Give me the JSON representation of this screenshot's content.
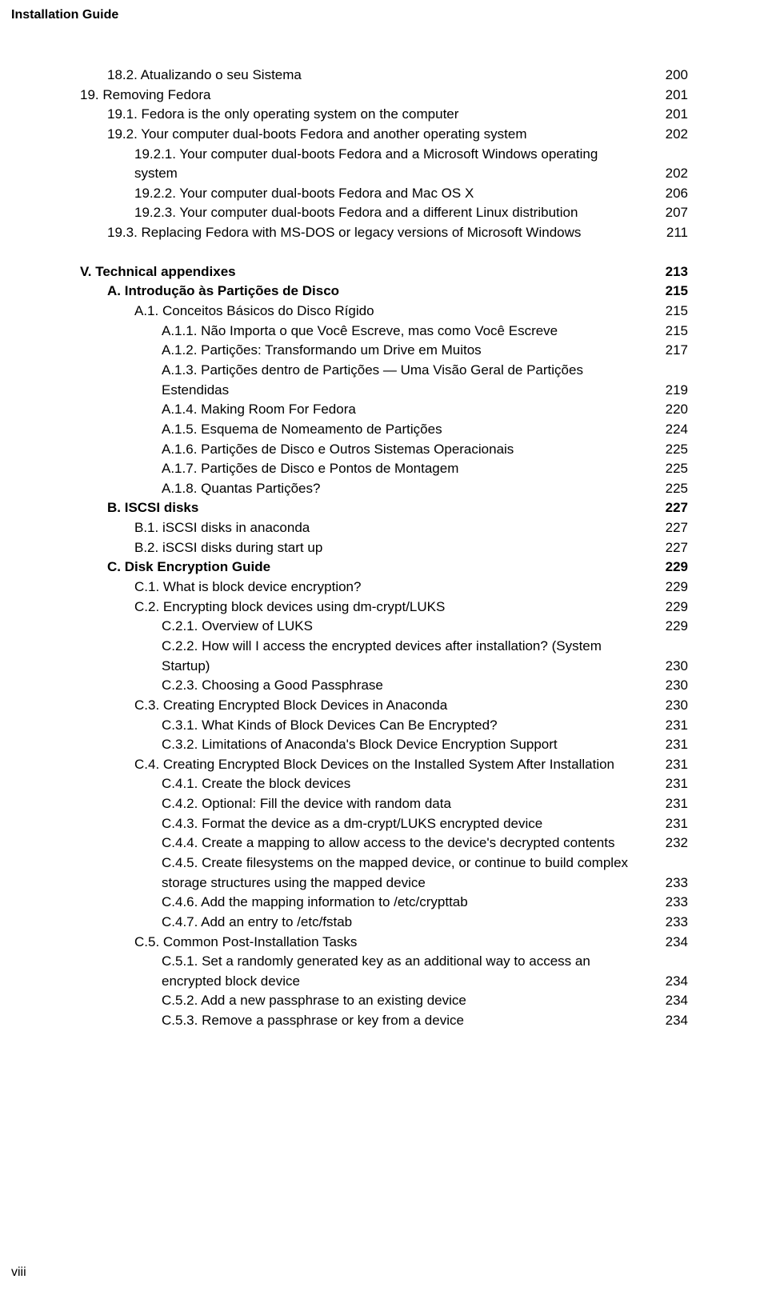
{
  "running_header": "Installation Guide",
  "page_number_label": "viii",
  "toc": [
    {
      "indent": 1,
      "bold": false,
      "dots": true,
      "label": "18.2. Atualizando o seu Sistema",
      "page": "200"
    },
    {
      "indent": 0,
      "bold": false,
      "dots": false,
      "label": "19. Removing Fedora",
      "page": "201"
    },
    {
      "indent": 1,
      "bold": false,
      "dots": true,
      "label": "19.1. Fedora is the only operating system on the computer",
      "page": "201"
    },
    {
      "indent": 1,
      "bold": false,
      "dots": true,
      "label": "19.2. Your computer dual-boots Fedora and another operating system",
      "page": "202"
    },
    {
      "indent": 2,
      "bold": false,
      "dots": false,
      "label": "19.2.1. Your computer dual-boots Fedora and a Microsoft Windows operating",
      "page": "",
      "nopage": true
    },
    {
      "indent": 2,
      "bold": false,
      "dots": true,
      "label": "system",
      "page": "202"
    },
    {
      "indent": 2,
      "bold": false,
      "dots": true,
      "label": "19.2.2. Your computer dual-boots Fedora and Mac OS X",
      "page": "206"
    },
    {
      "indent": 2,
      "bold": false,
      "dots": true,
      "label": "19.2.3. Your computer dual-boots Fedora and a different Linux distribution",
      "page": "207"
    },
    {
      "indent": 1,
      "bold": false,
      "dots": true,
      "label": "19.3. Replacing Fedora with MS-DOS or legacy versions of Microsoft Windows",
      "page": "211"
    },
    {
      "gap": true
    },
    {
      "indent": 0,
      "bold": true,
      "dots": false,
      "label": "V. Technical appendixes",
      "page": "213"
    },
    {
      "indent": 1,
      "bold": true,
      "dots": false,
      "label": "A. Introdução às Partições de Disco",
      "page": "215"
    },
    {
      "indent": 2,
      "bold": false,
      "dots": true,
      "label": "A.1. Conceitos Básicos do Disco Rígido",
      "page": "215"
    },
    {
      "indent": 2,
      "bold": false,
      "dots": true,
      "prefix_indent": 34,
      "label": "A.1.1. Não Importa o que Você Escreve, mas como Você Escreve",
      "page": "215"
    },
    {
      "indent": 2,
      "bold": false,
      "dots": true,
      "prefix_indent": 34,
      "label": "A.1.2. Partições: Transformando um Drive em Muitos",
      "page": "217"
    },
    {
      "indent": 2,
      "bold": false,
      "dots": false,
      "prefix_indent": 34,
      "label": "A.1.3. Partições dentro de Partições — Uma Visão Geral de Partições",
      "page": "",
      "nopage": true
    },
    {
      "indent": 2,
      "bold": false,
      "dots": true,
      "prefix_indent": 34,
      "label": "Estendidas",
      "page": "219"
    },
    {
      "indent": 2,
      "bold": false,
      "dots": true,
      "prefix_indent": 34,
      "label": "A.1.4. Making Room For Fedora",
      "page": "220"
    },
    {
      "indent": 2,
      "bold": false,
      "dots": true,
      "prefix_indent": 34,
      "label": "A.1.5. Esquema de Nomeamento de Partições",
      "page": "224"
    },
    {
      "indent": 2,
      "bold": false,
      "dots": true,
      "prefix_indent": 34,
      "label": "A.1.6. Partições de Disco e Outros Sistemas Operacionais",
      "page": "225"
    },
    {
      "indent": 2,
      "bold": false,
      "dots": true,
      "prefix_indent": 34,
      "label": "A.1.7. Partições de Disco e Pontos de Montagem",
      "page": "225"
    },
    {
      "indent": 2,
      "bold": false,
      "dots": true,
      "prefix_indent": 34,
      "label": "A.1.8. Quantas Partições?",
      "page": "225"
    },
    {
      "indent": 1,
      "bold": true,
      "dots": false,
      "label": "B. ISCSI disks",
      "page": "227"
    },
    {
      "indent": 2,
      "bold": false,
      "dots": true,
      "label": "B.1. iSCSI disks in anaconda",
      "page": "227"
    },
    {
      "indent": 2,
      "bold": false,
      "dots": true,
      "label": "B.2. iSCSI disks during start up",
      "page": "227"
    },
    {
      "indent": 1,
      "bold": true,
      "dots": false,
      "label": "C. Disk Encryption Guide",
      "page": "229"
    },
    {
      "indent": 2,
      "bold": false,
      "dots": true,
      "label": "C.1. What is block device encryption?",
      "page": "229"
    },
    {
      "indent": 2,
      "bold": false,
      "dots": true,
      "label": "C.2. Encrypting block devices using dm-crypt/LUKS",
      "page": "229"
    },
    {
      "indent": 2,
      "bold": false,
      "dots": true,
      "prefix_indent": 34,
      "label": "C.2.1. Overview of LUKS",
      "page": "229"
    },
    {
      "indent": 2,
      "bold": false,
      "dots": false,
      "prefix_indent": 34,
      "label": "C.2.2. How will I access the encrypted devices after installation? (System",
      "page": "",
      "nopage": true
    },
    {
      "indent": 2,
      "bold": false,
      "dots": true,
      "prefix_indent": 34,
      "label": "Startup)",
      "page": "230"
    },
    {
      "indent": 2,
      "bold": false,
      "dots": true,
      "prefix_indent": 34,
      "label": "C.2.3. Choosing a Good Passphrase",
      "page": "230"
    },
    {
      "indent": 2,
      "bold": false,
      "dots": true,
      "label": "C.3. Creating Encrypted Block Devices in Anaconda",
      "page": "230"
    },
    {
      "indent": 2,
      "bold": false,
      "dots": true,
      "prefix_indent": 34,
      "label": "C.3.1. What Kinds of Block Devices Can Be Encrypted?",
      "page": "231"
    },
    {
      "indent": 2,
      "bold": false,
      "dots": true,
      "prefix_indent": 34,
      "label": "C.3.2. Limitations of Anaconda's Block Device Encryption Support",
      "page": "231"
    },
    {
      "indent": 2,
      "bold": false,
      "dots": true,
      "label": "C.4. Creating Encrypted Block Devices on the Installed System After Installation",
      "page": "231"
    },
    {
      "indent": 2,
      "bold": false,
      "dots": true,
      "prefix_indent": 34,
      "label": "C.4.1. Create the block devices",
      "page": "231"
    },
    {
      "indent": 2,
      "bold": false,
      "dots": true,
      "prefix_indent": 34,
      "label": "C.4.2. Optional: Fill the device with random data",
      "page": "231"
    },
    {
      "indent": 2,
      "bold": false,
      "dots": true,
      "prefix_indent": 34,
      "label": "C.4.3. Format the device as a dm-crypt/LUKS encrypted device",
      "page": "231"
    },
    {
      "indent": 2,
      "bold": false,
      "dots": true,
      "prefix_indent": 34,
      "label": "C.4.4. Create a mapping to allow access to the device's decrypted contents",
      "page": "232"
    },
    {
      "indent": 2,
      "bold": false,
      "dots": false,
      "prefix_indent": 34,
      "label": "C.4.5. Create filesystems on the mapped device, or continue to build complex",
      "page": "",
      "nopage": true
    },
    {
      "indent": 2,
      "bold": false,
      "dots": true,
      "prefix_indent": 34,
      "label": "storage structures using the mapped device",
      "page": "233"
    },
    {
      "indent": 2,
      "bold": false,
      "dots": true,
      "prefix_indent": 34,
      "label": "C.4.6. Add the mapping information to /etc/crypttab",
      "page": "233"
    },
    {
      "indent": 2,
      "bold": false,
      "dots": true,
      "prefix_indent": 34,
      "label": "C.4.7. Add an entry to /etc/fstab",
      "page": "233"
    },
    {
      "indent": 2,
      "bold": false,
      "dots": true,
      "label": "C.5. Common Post-Installation Tasks",
      "page": "234"
    },
    {
      "indent": 2,
      "bold": false,
      "dots": false,
      "prefix_indent": 34,
      "label": "C.5.1. Set a randomly generated key as an additional way to access an",
      "page": "",
      "nopage": true
    },
    {
      "indent": 2,
      "bold": false,
      "dots": true,
      "prefix_indent": 34,
      "label": "encrypted block device",
      "page": "234"
    },
    {
      "indent": 2,
      "bold": false,
      "dots": true,
      "prefix_indent": 34,
      "label": "C.5.2. Add a new passphrase to an existing device",
      "page": "234"
    },
    {
      "indent": 2,
      "bold": false,
      "dots": true,
      "prefix_indent": 34,
      "label": "C.5.3. Remove a passphrase or key from a device",
      "page": "234"
    }
  ]
}
